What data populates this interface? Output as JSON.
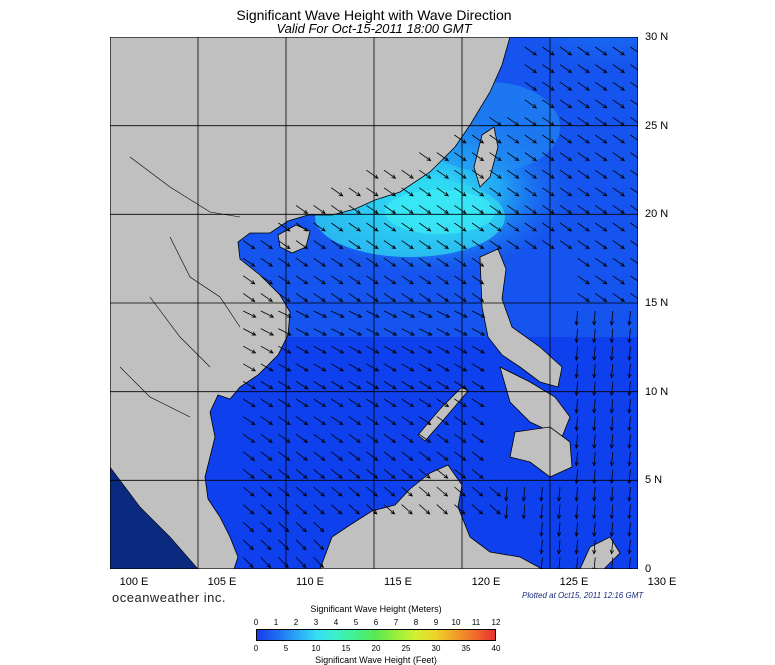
{
  "title": "Significant Wave Height with Wave Direction",
  "subtitle": "Valid For Oct-15-2011 18:00 GMT",
  "brand": "oceanweather inc.",
  "plotted": "Plotted at Oct15, 2011 12:16 GMT",
  "lat_labels": [
    "30 N",
    "25 N",
    "20 N",
    "15 N",
    "10 N",
    "5 N",
    "0"
  ],
  "lon_labels": [
    "100 E",
    "105 E",
    "110 E",
    "115 E",
    "120 E",
    "125 E",
    "130 E"
  ],
  "colorbar": {
    "title_meters": "Significant Wave Height (Meters)",
    "title_feet": "Significant Wave Height (Feet)",
    "meters_ticks": [
      "0",
      "1",
      "2",
      "3",
      "4",
      "5",
      "6",
      "7",
      "8",
      "9",
      "10",
      "11",
      "12"
    ],
    "feet_ticks": [
      "0",
      "5",
      "10",
      "15",
      "20",
      "25",
      "30",
      "35",
      "40"
    ],
    "colors": [
      "#1a3ce8",
      "#1f6cf2",
      "#2aa6f6",
      "#38dcf4",
      "#3cf0c8",
      "#44f08c",
      "#5ae852",
      "#96f03c",
      "#d2f030",
      "#f0d22a",
      "#f0a02a",
      "#f06c2a",
      "#e83030"
    ]
  },
  "colors": {
    "land": "#c0c0c0",
    "ocean_low": "#0a3cf0",
    "ocean_mid": "#1c78f2",
    "ocean_high": "#2ad4f4",
    "arrow": "#000000"
  }
}
